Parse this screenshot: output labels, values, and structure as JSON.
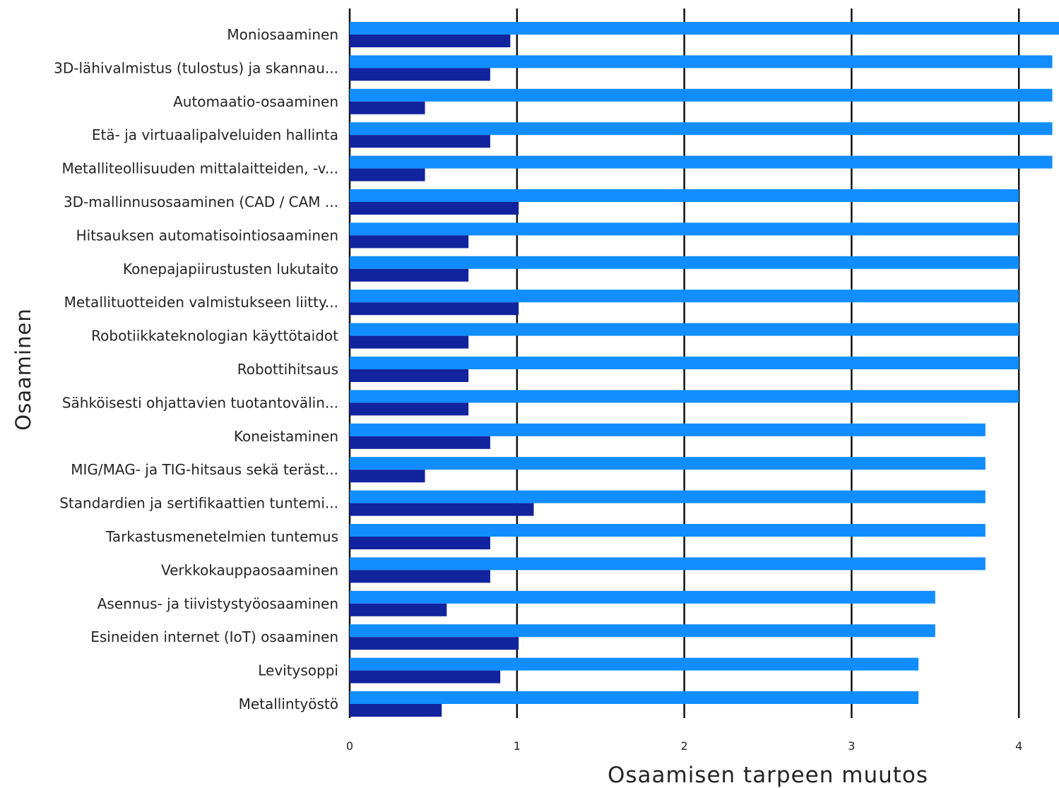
{
  "chart_data": {
    "type": "bar",
    "orientation": "horizontal",
    "xlabel": "Osaamisen tarpeen muutos",
    "ylabel": "Osaaminen",
    "xlim": [
      0,
      4.25
    ],
    "xticks": [
      0,
      1,
      2,
      3,
      4
    ],
    "grid": true,
    "legend": "none",
    "categories": [
      "Moniosaaminen",
      "3D-lähivalmistus (tulostus) ja skannau...",
      "Automaatio-osaaminen",
      "Etä- ja virtuaalipalveluiden hallinta",
      "Metalliteollisuuden mittalaitteiden, -v...",
      "3D-mallinnusosaaminen (CAD / CAM ...",
      "Hitsauksen automatisointiosaaminen",
      "Konepajapiirustusten lukutaito",
      "Metallituotteiden valmistukseen liitty...",
      "Robotiikkateknologian käyttötaidot",
      "Robottihitsaus",
      "Sähköisesti ohjattavien tuotantovälin...",
      "Koneistaminen",
      "MIG/MAG- ja TIG-hitsaus sekä teräst...",
      "Standardien ja sertifikaattien tuntemi...",
      "Tarkastusmenetelmien tuntemus",
      "Verkkokauppaosaaminen",
      "Asennus- ja tiivistystyöosaaminen",
      "Esineiden internet (IoT) osaaminen",
      "Levitysoppi",
      "Metallintyöstö"
    ],
    "series": [
      {
        "color": "#118dff",
        "values": [
          4.25,
          4.2,
          4.2,
          4.2,
          4.2,
          4.0,
          4.0,
          4.0,
          4.0,
          4.0,
          4.0,
          4.0,
          3.8,
          3.8,
          3.8,
          3.8,
          3.8,
          3.5,
          3.5,
          3.4,
          3.4
        ]
      },
      {
        "color": "#12239e",
        "values": [
          0.96,
          0.84,
          0.45,
          0.84,
          0.45,
          1.01,
          0.71,
          0.71,
          1.01,
          0.71,
          0.71,
          0.71,
          0.84,
          0.45,
          1.1,
          0.84,
          0.84,
          0.58,
          1.01,
          0.9,
          0.55
        ]
      }
    ]
  }
}
